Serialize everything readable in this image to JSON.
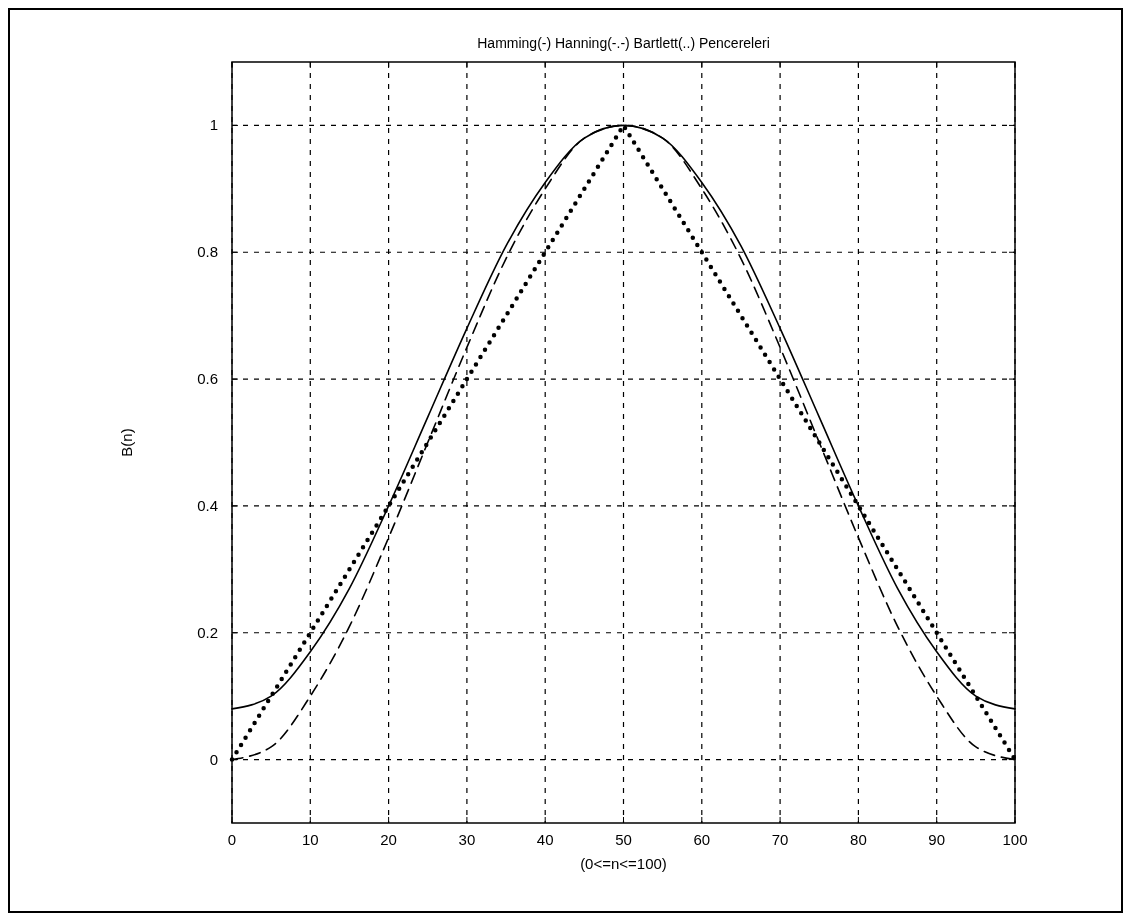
{
  "chart_data": {
    "type": "line",
    "title": "Hamming(-)  Hanning(-.-) Bartlett(..) Pencereleri",
    "xlabel": "(0<=n<=100)",
    "ylabel": "B(n)",
    "xlim": [
      0,
      100
    ],
    "xticks": [
      0,
      10,
      20,
      30,
      40,
      50,
      60,
      70,
      80,
      90,
      100
    ],
    "ylim": [
      -0.1,
      1.1
    ],
    "yticks": [
      0,
      0.2,
      0.4,
      0.6,
      0.8,
      1
    ],
    "grid": true,
    "series": [
      {
        "color": "#000000",
        "line_style": "solid",
        "x": [
          0,
          5,
          10,
          15,
          20,
          25,
          30,
          35,
          40,
          45,
          50,
          55,
          60,
          65,
          70,
          75,
          80,
          85,
          90,
          95,
          100
        ],
        "values": [
          0.08,
          0.1,
          0.17,
          0.27,
          0.4,
          0.54,
          0.68,
          0.81,
          0.91,
          0.98,
          1,
          0.98,
          0.91,
          0.81,
          0.68,
          0.54,
          0.4,
          0.27,
          0.17,
          0.1,
          0.08
        ]
      },
      {
        "color": "#000000",
        "line_style": "dashed",
        "x": [
          0,
          5,
          10,
          15,
          20,
          25,
          30,
          35,
          40,
          45,
          50,
          55,
          60,
          65,
          70,
          75,
          80,
          85,
          90,
          95,
          100
        ],
        "values": [
          0,
          0.02,
          0.1,
          0.21,
          0.35,
          0.5,
          0.65,
          0.79,
          0.9,
          0.98,
          1,
          0.98,
          0.9,
          0.79,
          0.65,
          0.5,
          0.35,
          0.21,
          0.1,
          0.02,
          0
        ]
      },
      {
        "color": "#000000",
        "line_style": "dotted",
        "x": [
          0,
          50,
          100
        ],
        "values": [
          0,
          1,
          0
        ]
      }
    ]
  }
}
